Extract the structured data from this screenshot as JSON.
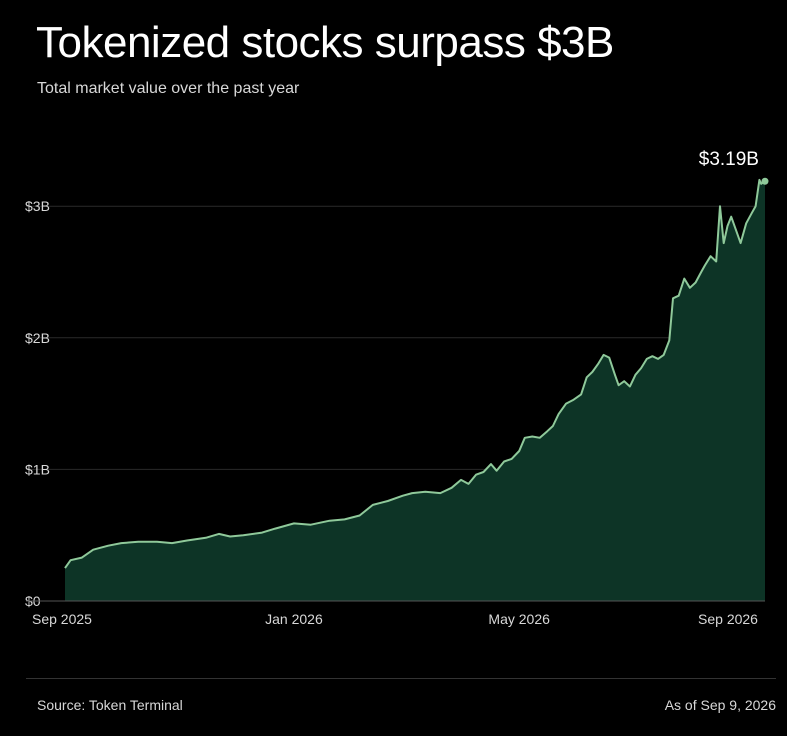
{
  "title": "Tokenized stocks surpass $3B",
  "subtitle": "Total market value over the past year",
  "source": "Source: Token Terminal",
  "as_of": "As of Sep 9, 2026",
  "colors": {
    "line": "#8fc99a",
    "area": "#0d3426",
    "grid": "#2a2a2a",
    "background": "#000000"
  },
  "chart_data": {
    "type": "area",
    "title": "Tokenized stocks surpass $3B",
    "subtitle": "Total market value over the past year",
    "xlabel": "",
    "ylabel": "",
    "x_range": [
      "2025-09-01",
      "2026-09-09"
    ],
    "ylim": [
      0,
      3.45
    ],
    "y_ticks": [
      0,
      1,
      2,
      3
    ],
    "y_tick_labels": [
      "$0",
      "$1B",
      "$2B",
      "$3B"
    ],
    "x_ticks": [
      "2025-09-01",
      "2026-01-01",
      "2026-05-01",
      "2026-09-01"
    ],
    "x_tick_labels": [
      "Sep 2025",
      "Jan 2026",
      "May 2026",
      "Sep 2026"
    ],
    "grid": true,
    "annotation": {
      "x": "2026-09-09",
      "y": 3.19,
      "label": "$3.19B"
    },
    "series": [
      {
        "name": "",
        "points": [
          [
            "2025-09-01",
            0.25
          ],
          [
            "2025-09-04",
            0.31
          ],
          [
            "2025-09-10",
            0.33
          ],
          [
            "2025-09-16",
            0.39
          ],
          [
            "2025-09-24",
            0.42
          ],
          [
            "2025-10-01",
            0.44
          ],
          [
            "2025-10-10",
            0.45
          ],
          [
            "2025-10-20",
            0.45
          ],
          [
            "2025-10-28",
            0.44
          ],
          [
            "2025-11-05",
            0.46
          ],
          [
            "2025-11-15",
            0.48
          ],
          [
            "2025-11-22",
            0.51
          ],
          [
            "2025-11-28",
            0.49
          ],
          [
            "2025-12-05",
            0.5
          ],
          [
            "2025-12-15",
            0.52
          ],
          [
            "2025-12-22",
            0.55
          ],
          [
            "2026-01-01",
            0.59
          ],
          [
            "2026-01-10",
            0.58
          ],
          [
            "2026-01-20",
            0.61
          ],
          [
            "2026-01-28",
            0.62
          ],
          [
            "2026-02-05",
            0.65
          ],
          [
            "2026-02-12",
            0.73
          ],
          [
            "2026-02-20",
            0.76
          ],
          [
            "2026-02-28",
            0.8
          ],
          [
            "2026-03-05",
            0.82
          ],
          [
            "2026-03-12",
            0.83
          ],
          [
            "2026-03-20",
            0.82
          ],
          [
            "2026-03-26",
            0.86
          ],
          [
            "2026-03-31",
            0.92
          ],
          [
            "2026-04-04",
            0.89
          ],
          [
            "2026-04-08",
            0.96
          ],
          [
            "2026-04-12",
            0.98
          ],
          [
            "2026-04-16",
            1.04
          ],
          [
            "2026-04-19",
            0.99
          ],
          [
            "2026-04-23",
            1.06
          ],
          [
            "2026-04-27",
            1.08
          ],
          [
            "2026-05-01",
            1.14
          ],
          [
            "2026-05-04",
            1.24
          ],
          [
            "2026-05-08",
            1.25
          ],
          [
            "2026-05-12",
            1.24
          ],
          [
            "2026-05-16",
            1.29
          ],
          [
            "2026-05-19",
            1.33
          ],
          [
            "2026-05-22",
            1.42
          ],
          [
            "2026-05-26",
            1.5
          ],
          [
            "2026-05-30",
            1.53
          ],
          [
            "2026-06-03",
            1.57
          ],
          [
            "2026-06-06",
            1.7
          ],
          [
            "2026-06-09",
            1.74
          ],
          [
            "2026-06-12",
            1.8
          ],
          [
            "2026-06-15",
            1.87
          ],
          [
            "2026-06-18",
            1.85
          ],
          [
            "2026-06-21",
            1.72
          ],
          [
            "2026-06-23",
            1.64
          ],
          [
            "2026-06-26",
            1.67
          ],
          [
            "2026-06-29",
            1.63
          ],
          [
            "2026-07-02",
            1.72
          ],
          [
            "2026-07-05",
            1.77
          ],
          [
            "2026-07-08",
            1.84
          ],
          [
            "2026-07-11",
            1.86
          ],
          [
            "2026-07-14",
            1.84
          ],
          [
            "2026-07-17",
            1.87
          ],
          [
            "2026-07-20",
            1.98
          ],
          [
            "2026-07-22",
            2.3
          ],
          [
            "2026-07-25",
            2.32
          ],
          [
            "2026-07-28",
            2.45
          ],
          [
            "2026-07-31",
            2.38
          ],
          [
            "2026-08-03",
            2.42
          ],
          [
            "2026-08-06",
            2.5
          ],
          [
            "2026-08-08",
            2.55
          ],
          [
            "2026-08-11",
            2.62
          ],
          [
            "2026-08-14",
            2.58
          ],
          [
            "2026-08-16",
            3.0
          ],
          [
            "2026-08-18",
            2.72
          ],
          [
            "2026-08-20",
            2.85
          ],
          [
            "2026-08-22",
            2.92
          ],
          [
            "2026-08-24",
            2.84
          ],
          [
            "2026-08-27",
            2.72
          ],
          [
            "2026-08-30",
            2.87
          ],
          [
            "2026-09-02",
            2.95
          ],
          [
            "2026-09-04",
            3.0
          ],
          [
            "2026-09-06",
            3.2
          ],
          [
            "2026-09-07",
            3.17
          ],
          [
            "2026-09-09",
            3.19
          ]
        ]
      }
    ]
  }
}
